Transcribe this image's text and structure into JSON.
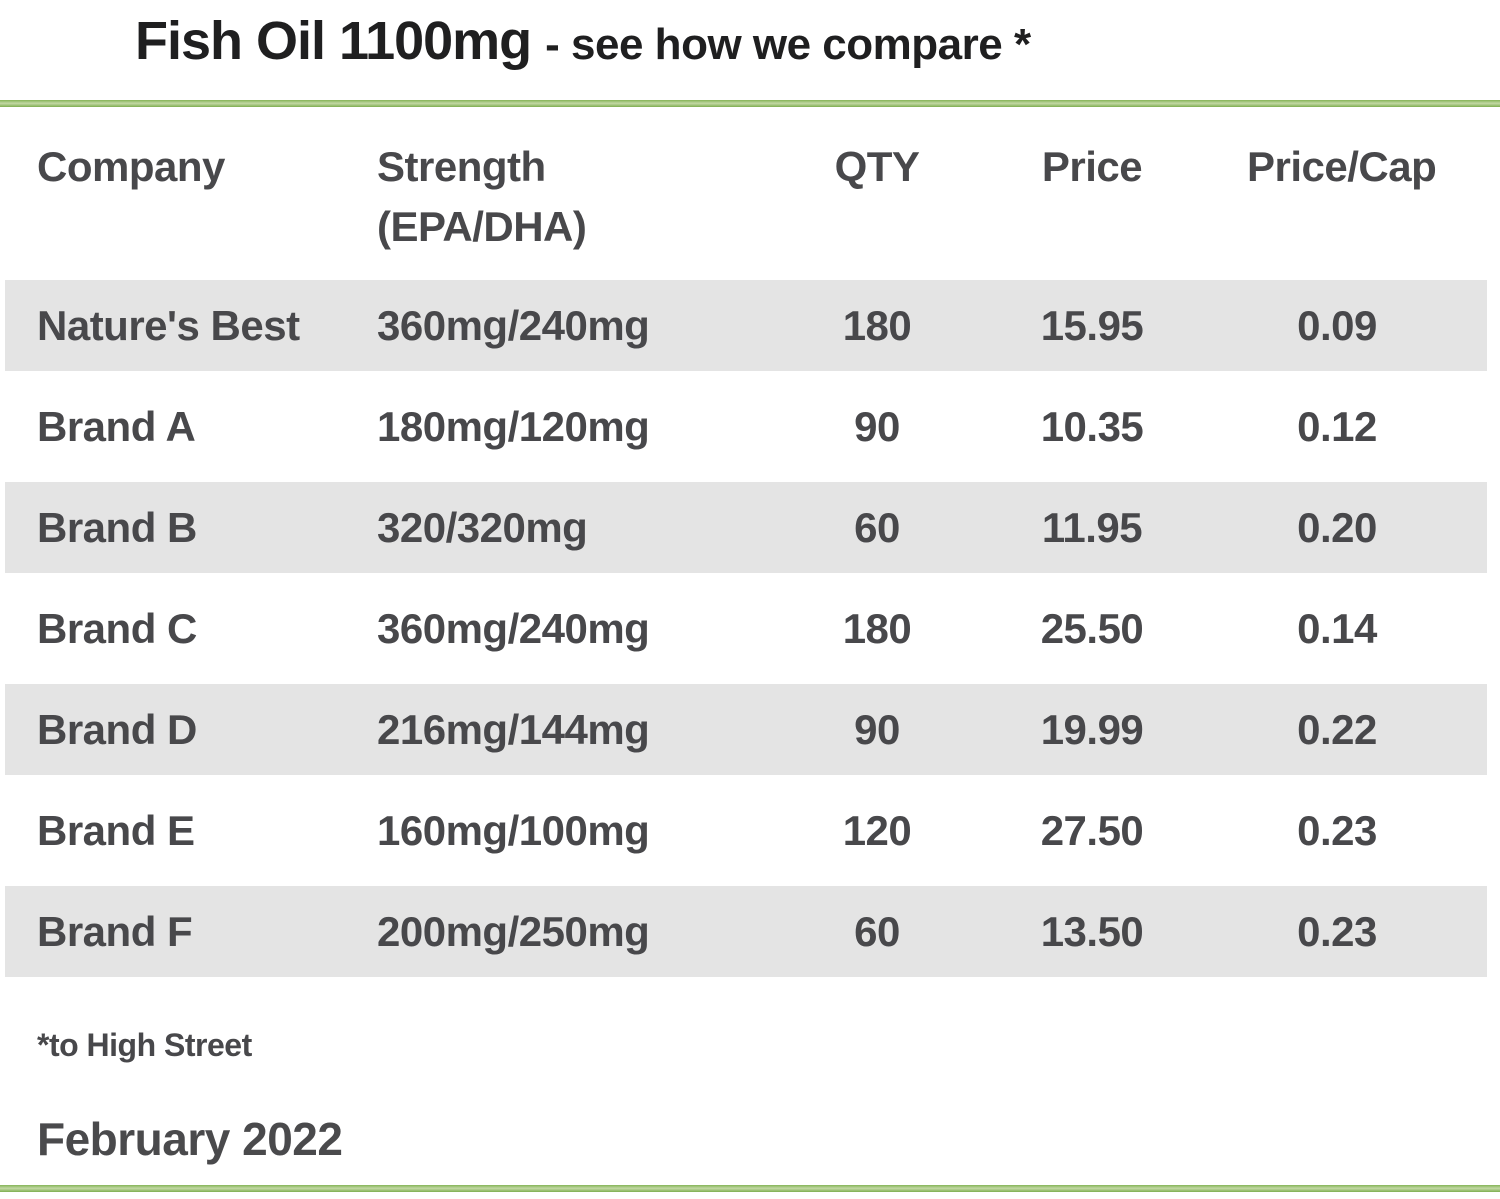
{
  "header": {
    "title": "Fish Oil 1100mg",
    "subtitle": "- see how we compare *"
  },
  "table": {
    "columns": [
      {
        "label": "Company",
        "sublabel": ""
      },
      {
        "label": "Strength",
        "sublabel": "(EPA/DHA)"
      },
      {
        "label": "QTY",
        "sublabel": ""
      },
      {
        "label": "Price",
        "sublabel": ""
      },
      {
        "label": "Price/Cap",
        "sublabel": ""
      }
    ],
    "rows": [
      {
        "company": "Nature's Best",
        "strength": "360mg/240mg",
        "qty": "180",
        "price": "15.95",
        "price_per_cap": "0.09"
      },
      {
        "company": "Brand A",
        "strength": "180mg/120mg",
        "qty": "90",
        "price": "10.35",
        "price_per_cap": "0.12"
      },
      {
        "company": "Brand B",
        "strength": "320/320mg",
        "qty": "60",
        "price": "11.95",
        "price_per_cap": "0.20"
      },
      {
        "company": "Brand C",
        "strength": "360mg/240mg",
        "qty": "180",
        "price": "25.50",
        "price_per_cap": "0.14"
      },
      {
        "company": "Brand D",
        "strength": "216mg/144mg",
        "qty": "90",
        "price": "19.99",
        "price_per_cap": "0.22"
      },
      {
        "company": "Brand E",
        "strength": "160mg/100mg",
        "qty": "120",
        "price": "27.50",
        "price_per_cap": "0.23"
      },
      {
        "company": "Brand F",
        "strength": "200mg/250mg",
        "qty": "60",
        "price": "13.50",
        "price_per_cap": "0.23"
      }
    ]
  },
  "footer": {
    "footnote": "*to High Street",
    "date": "February 2022"
  },
  "colors": {
    "accent_green": "#85b457",
    "row_stripe": "#e4e4e4",
    "title_text": "#1f1f20",
    "body_text": "#48484b"
  },
  "chart_data": {
    "type": "table",
    "title": "Fish Oil 1100mg - see how we compare *",
    "columns": [
      "Company",
      "Strength (EPA/DHA)",
      "QTY",
      "Price",
      "Price/Cap"
    ],
    "rows": [
      [
        "Nature's Best",
        "360mg/240mg",
        180,
        15.95,
        0.09
      ],
      [
        "Brand A",
        "180mg/120mg",
        90,
        10.35,
        0.12
      ],
      [
        "Brand B",
        "320/320mg",
        60,
        11.95,
        0.2
      ],
      [
        "Brand C",
        "360mg/240mg",
        180,
        25.5,
        0.14
      ],
      [
        "Brand D",
        "216mg/144mg",
        90,
        19.99,
        0.22
      ],
      [
        "Brand E",
        "160mg/100mg",
        120,
        27.5,
        0.23
      ],
      [
        "Brand F",
        "200mg/250mg",
        60,
        13.5,
        0.23
      ]
    ],
    "footnote": "*to High Street",
    "as_of": "February 2022",
    "highlight_row": "Nature's Best",
    "stripe_rows": [
      0,
      2,
      4,
      6
    ]
  }
}
